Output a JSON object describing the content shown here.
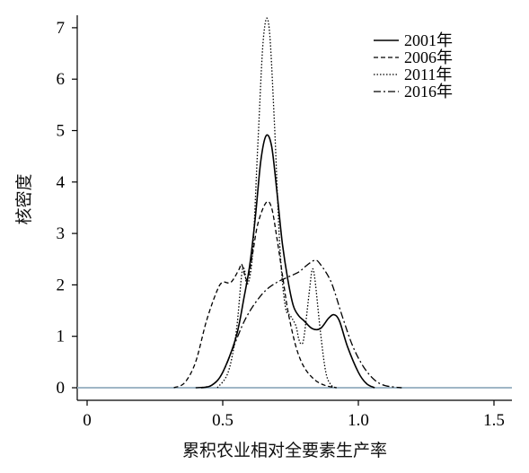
{
  "chart_data": {
    "type": "line",
    "xlabel": "累积农业相对全要素生产率",
    "ylabel": "核密度",
    "xlim": [
      -0.05,
      1.55
    ],
    "ylim": [
      -0.2,
      7.3
    ],
    "x_ticks": [
      "0",
      "0.5",
      "1.0",
      "1.5"
    ],
    "y_ticks": [
      "0",
      "1",
      "2",
      "3",
      "4",
      "5",
      "6",
      "7"
    ],
    "legend_position": "top-right",
    "baseline_color": "#9fb6c6",
    "series": [
      {
        "name": "2001年",
        "style": "solid",
        "points": [
          [
            0.42,
            0
          ],
          [
            0.46,
            0.05
          ],
          [
            0.5,
            0.3
          ],
          [
            0.55,
            1.0
          ],
          [
            0.58,
            1.8
          ],
          [
            0.6,
            2.4
          ],
          [
            0.62,
            3.3
          ],
          [
            0.64,
            4.4
          ],
          [
            0.66,
            4.9
          ],
          [
            0.68,
            4.7
          ],
          [
            0.7,
            3.8
          ],
          [
            0.72,
            2.8
          ],
          [
            0.74,
            2.1
          ],
          [
            0.76,
            1.6
          ],
          [
            0.78,
            1.4
          ],
          [
            0.8,
            1.3
          ],
          [
            0.83,
            1.15
          ],
          [
            0.86,
            1.15
          ],
          [
            0.89,
            1.35
          ],
          [
            0.91,
            1.42
          ],
          [
            0.93,
            1.3
          ],
          [
            0.96,
            0.8
          ],
          [
            1.0,
            0.3
          ],
          [
            1.03,
            0.08
          ],
          [
            1.06,
            0
          ]
        ]
      },
      {
        "name": "2006年",
        "style": "dashed",
        "points": [
          [
            0.32,
            0
          ],
          [
            0.36,
            0.1
          ],
          [
            0.4,
            0.5
          ],
          [
            0.44,
            1.3
          ],
          [
            0.48,
            1.9
          ],
          [
            0.5,
            2.05
          ],
          [
            0.53,
            2.05
          ],
          [
            0.56,
            2.3
          ],
          [
            0.57,
            2.4
          ],
          [
            0.59,
            2.1
          ],
          [
            0.61,
            2.6
          ],
          [
            0.63,
            3.2
          ],
          [
            0.66,
            3.6
          ],
          [
            0.68,
            3.5
          ],
          [
            0.7,
            2.9
          ],
          [
            0.72,
            2.2
          ],
          [
            0.74,
            1.5
          ],
          [
            0.77,
            0.8
          ],
          [
            0.8,
            0.4
          ],
          [
            0.84,
            0.15
          ],
          [
            0.88,
            0.04
          ],
          [
            0.92,
            0
          ]
        ]
      },
      {
        "name": "2011年",
        "style": "dotted",
        "points": [
          [
            0.48,
            0
          ],
          [
            0.52,
            0.3
          ],
          [
            0.55,
            1.1
          ],
          [
            0.57,
            2.2
          ],
          [
            0.58,
            2.3
          ],
          [
            0.59,
            2.0
          ],
          [
            0.61,
            2.6
          ],
          [
            0.63,
            4.8
          ],
          [
            0.65,
            6.8
          ],
          [
            0.67,
            7.05
          ],
          [
            0.69,
            5.2
          ],
          [
            0.71,
            2.8
          ],
          [
            0.73,
            1.6
          ],
          [
            0.75,
            1.4
          ],
          [
            0.77,
            1.2
          ],
          [
            0.78,
            0.95
          ],
          [
            0.79,
            0.85
          ],
          [
            0.8,
            1.0
          ],
          [
            0.82,
            1.9
          ],
          [
            0.83,
            2.3
          ],
          [
            0.84,
            2.1
          ],
          [
            0.86,
            1.1
          ],
          [
            0.88,
            0.3
          ],
          [
            0.9,
            0.05
          ],
          [
            0.92,
            0
          ]
        ]
      },
      {
        "name": "2016年",
        "style": "dashdot",
        "points": [
          [
            0.4,
            0
          ],
          [
            0.46,
            0.05
          ],
          [
            0.5,
            0.3
          ],
          [
            0.54,
            0.8
          ],
          [
            0.58,
            1.3
          ],
          [
            0.62,
            1.65
          ],
          [
            0.66,
            1.9
          ],
          [
            0.7,
            2.05
          ],
          [
            0.74,
            2.15
          ],
          [
            0.78,
            2.25
          ],
          [
            0.81,
            2.38
          ],
          [
            0.84,
            2.48
          ],
          [
            0.86,
            2.4
          ],
          [
            0.9,
            2.05
          ],
          [
            0.94,
            1.4
          ],
          [
            0.98,
            0.8
          ],
          [
            1.02,
            0.4
          ],
          [
            1.06,
            0.15
          ],
          [
            1.1,
            0.04
          ],
          [
            1.16,
            0
          ]
        ]
      }
    ]
  }
}
